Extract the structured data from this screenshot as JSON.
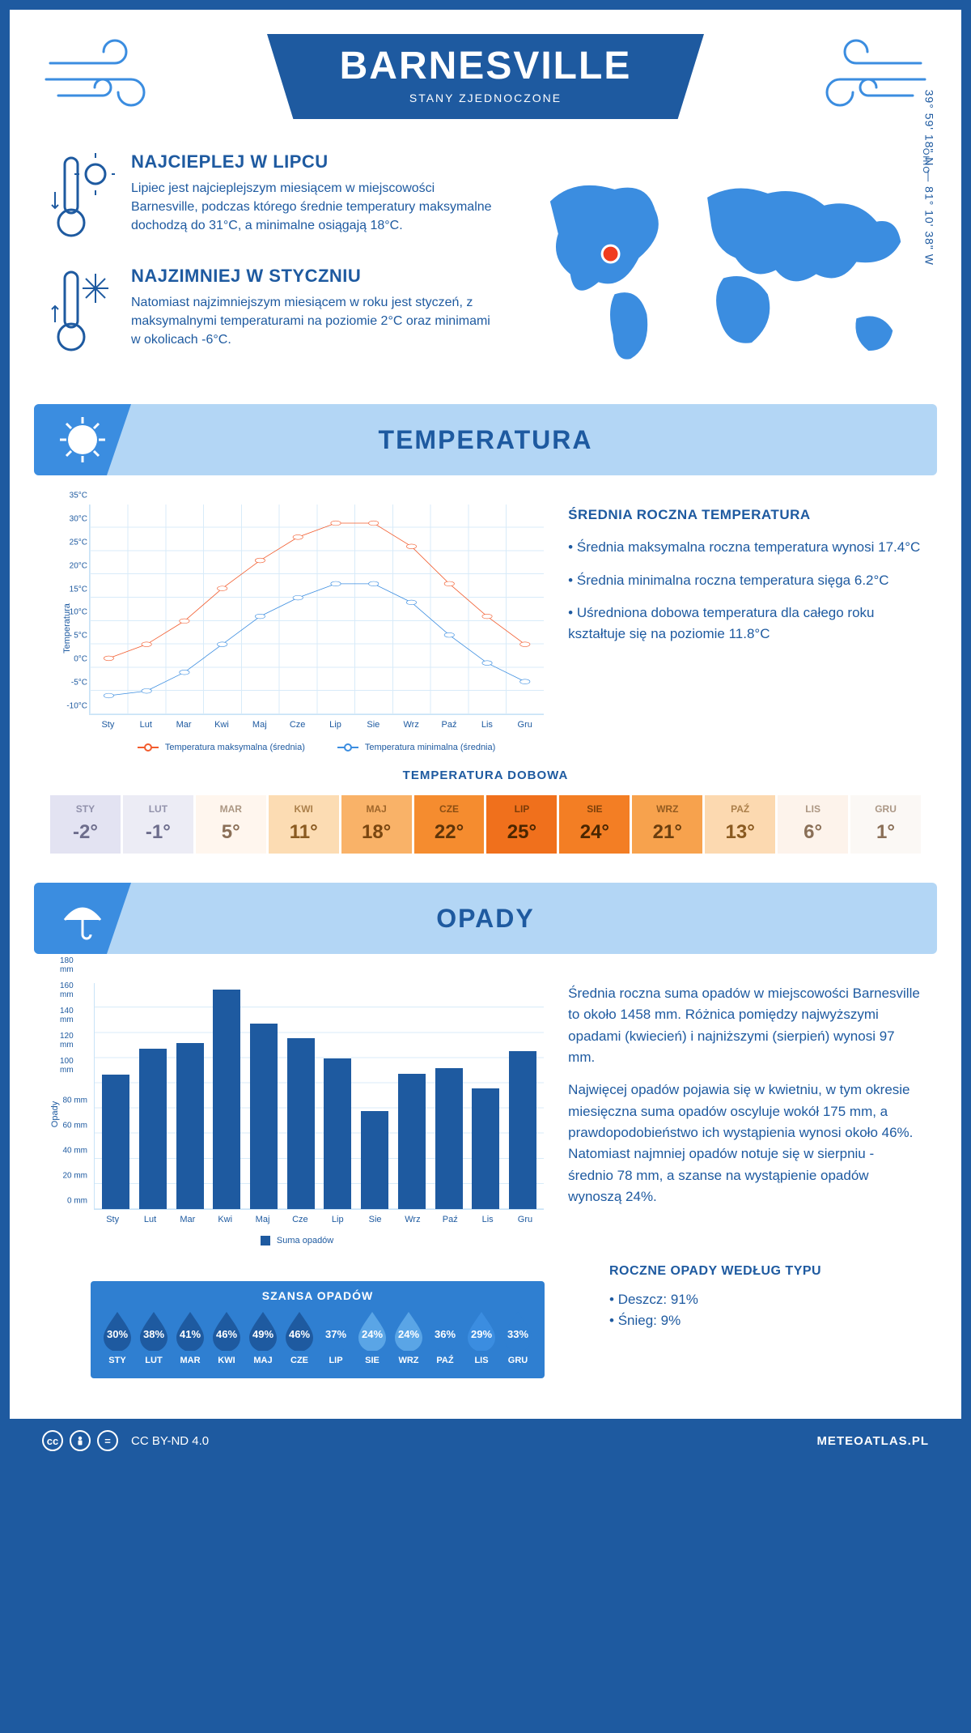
{
  "header": {
    "title": "BARNESVILLE",
    "subtitle": "STANY ZJEDNOCZONE"
  },
  "location": {
    "coords": "39° 59' 18\" N — 81° 10' 38\" W",
    "region": "OHIO",
    "marker_color": "#f03c1f"
  },
  "facts": {
    "warmest": {
      "title": "NAJCIEPLEJ W LIPCU",
      "text": "Lipiec jest najcieplejszym miesiącem w miejscowości Barnesville, podczas którego średnie temperatury maksymalne dochodzą do 31°C, a minimalne osiągają 18°C."
    },
    "coldest": {
      "title": "NAJZIMNIEJ W STYCZNIU",
      "text": "Natomiast najzimniejszym miesiącem w roku jest styczeń, z maksymalnymi temperaturami na poziomie 2°C oraz minimami w okolicach -6°C."
    }
  },
  "temp_section": {
    "heading": "TEMPERATURA",
    "summary_title": "ŚREDNIA ROCZNA TEMPERATURA",
    "summary": [
      "Średnia maksymalna roczna temperatura wynosi 17.4°C",
      "Średnia minimalna roczna temperatura sięga 6.2°C",
      "Uśredniona dobowa temperatura dla całego roku kształtuje się na poziomie 11.8°C"
    ],
    "chart": {
      "type": "line",
      "ylabel": "Temperatura",
      "ylim": [
        -10,
        35
      ],
      "ytick_step": 5,
      "ytick_suffix": "°C",
      "months": [
        "Sty",
        "Lut",
        "Mar",
        "Kwi",
        "Maj",
        "Cze",
        "Lip",
        "Sie",
        "Wrz",
        "Paź",
        "Lis",
        "Gru"
      ],
      "series": [
        {
          "name": "Temperatura maksymalna (średnia)",
          "color": "#f25c2e",
          "values": [
            2,
            5,
            10,
            17,
            23,
            28,
            31,
            31,
            26,
            18,
            11,
            5
          ]
        },
        {
          "name": "Temperatura minimalna (średnia)",
          "color": "#3b8de0",
          "values": [
            -6,
            -5,
            -1,
            5,
            11,
            15,
            18,
            18,
            14,
            7,
            1,
            -3
          ]
        }
      ],
      "grid_color": "#d8ebf9",
      "background_color": "#ffffff",
      "marker": "circle",
      "line_width": 2
    },
    "daily": {
      "title": "TEMPERATURA DOBOWA",
      "months": [
        "STY",
        "LUT",
        "MAR",
        "KWI",
        "MAJ",
        "CZE",
        "LIP",
        "SIE",
        "WRZ",
        "PAŹ",
        "LIS",
        "GRU"
      ],
      "values": [
        "-2°",
        "-1°",
        "5°",
        "11°",
        "18°",
        "22°",
        "25°",
        "24°",
        "21°",
        "13°",
        "6°",
        "1°"
      ],
      "cell_bg": [
        "#e3e3f2",
        "#ececf5",
        "#fff6ee",
        "#fcdcb3",
        "#f9b268",
        "#f58c2f",
        "#f0701c",
        "#f37e24",
        "#f7a24d",
        "#fcd9b0",
        "#fdf3eb",
        "#fbf8f5"
      ],
      "cell_text": [
        "#6d6d8c",
        "#6d6d8c",
        "#8a6f57",
        "#8a5a20",
        "#7a4610",
        "#5e3408",
        "#4a2600",
        "#4a2600",
        "#6a3e0e",
        "#8a5a20",
        "#8a6f57",
        "#8a6f57"
      ]
    }
  },
  "precip_section": {
    "heading": "OPADY",
    "summary": [
      "Średnia roczna suma opadów w miejscowości Barnesville to około 1458 mm. Różnica pomiędzy najwyższymi opadami (kwiecień) i najniższymi (sierpień) wynosi 97 mm.",
      "Najwięcej opadów pojawia się w kwietniu, w tym okresie miesięczna suma opadów oscyluje wokół 175 mm, a prawdopodobieństwo ich wystąpienia wynosi około 46%. Natomiast najmniej opadów notuje się w sierpniu - średnio 78 mm, a szanse na wystąpienie opadów wynoszą 24%."
    ],
    "chart": {
      "type": "bar",
      "ylabel": "Opady",
      "ylim": [
        0,
        180
      ],
      "ytick_step": 20,
      "ytick_suffix": " mm",
      "months": [
        "Sty",
        "Lut",
        "Mar",
        "Kwi",
        "Maj",
        "Cze",
        "Lip",
        "Sie",
        "Wrz",
        "Paź",
        "Lis",
        "Gru"
      ],
      "values": [
        107,
        128,
        132,
        175,
        148,
        136,
        120,
        78,
        108,
        112,
        96,
        126
      ],
      "bar_color": "#1e5aa0",
      "legend_label": "Suma opadów",
      "grid_color": "#d8ebf9"
    },
    "chance": {
      "title": "SZANSA OPADÓW",
      "box_bg": "#2f7fd1",
      "months": [
        "STY",
        "LUT",
        "MAR",
        "KWI",
        "MAJ",
        "CZE",
        "LIP",
        "SIE",
        "WRZ",
        "PAŹ",
        "LIS",
        "GRU"
      ],
      "values": [
        "30%",
        "38%",
        "41%",
        "46%",
        "49%",
        "46%",
        "37%",
        "24%",
        "24%",
        "36%",
        "29%",
        "33%"
      ],
      "drop_colors": [
        "#1e5aa0",
        "#1e5aa0",
        "#1e5aa0",
        "#1e5aa0",
        "#1e5aa0",
        "#1e5aa0",
        "#2f7fd1",
        "#5aa5e6",
        "#5aa5e6",
        "#2f7fd1",
        "#3b8de0",
        "#2f7fd1"
      ]
    },
    "by_type": {
      "title": "ROCZNE OPADY WEDŁUG TYPU",
      "items": [
        "Deszcz: 91%",
        "Śnieg: 9%"
      ]
    }
  },
  "footer": {
    "license": "CC BY-ND 4.0",
    "brand": "METEOATLAS.PL"
  },
  "palette": {
    "brand_blue": "#1e5aa0",
    "light_blue": "#b3d6f5",
    "mid_blue": "#3b8de0"
  }
}
